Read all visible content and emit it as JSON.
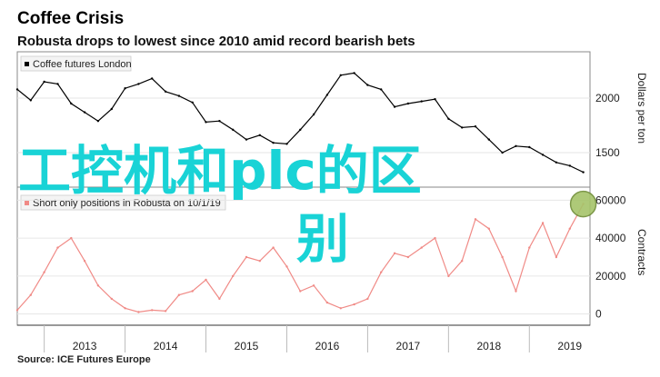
{
  "header": {
    "title": "Coffee Crisis",
    "subtitle": "Robusta drops to lowest since 2010 amid record bearish bets"
  },
  "source": "Source: ICE Futures Europe",
  "overlay_text": [
    "工控机和plc的区",
    "别"
  ],
  "colors": {
    "price_line": "#000000",
    "positions_line": "#f08a86",
    "highlight_circle": "#a6c46a",
    "overlay": "#19d3d6",
    "axis": "#333333"
  },
  "chart_data": [
    {
      "type": "line",
      "legend": "Coffee futures London",
      "ylabel": "Dollars per ton",
      "ylim": [
        1200,
        2400
      ],
      "yticks": [
        1500,
        2000
      ],
      "x": [
        "2012-09",
        "2012-11",
        "2013-01",
        "2013-03",
        "2013-05",
        "2013-07",
        "2013-09",
        "2013-11",
        "2014-01",
        "2014-03",
        "2014-05",
        "2014-07",
        "2014-09",
        "2014-11",
        "2015-01",
        "2015-03",
        "2015-05",
        "2015-07",
        "2015-09",
        "2015-11",
        "2016-01",
        "2016-03",
        "2016-05",
        "2016-07",
        "2016-09",
        "2016-11",
        "2017-01",
        "2017-03",
        "2017-05",
        "2017-07",
        "2017-09",
        "2017-11",
        "2018-01",
        "2018-03",
        "2018-05",
        "2018-07",
        "2018-09",
        "2018-11",
        "2019-01",
        "2019-03",
        "2019-05",
        "2019-07",
        "2019-09"
      ],
      "values": [
        2080,
        1980,
        2150,
        2130,
        1950,
        1870,
        1790,
        1900,
        2090,
        2130,
        2180,
        2060,
        2020,
        1960,
        1780,
        1790,
        1710,
        1620,
        1660,
        1590,
        1580,
        1710,
        1850,
        2030,
        2210,
        2230,
        2120,
        2080,
        1920,
        1950,
        1970,
        1990,
        1810,
        1730,
        1740,
        1620,
        1500,
        1560,
        1550,
        1480,
        1410,
        1380,
        1320
      ]
    },
    {
      "type": "line",
      "legend": "Short only positions in Robusta on 10/1/19",
      "ylabel": "Contracts",
      "ylim": [
        -5000,
        65000
      ],
      "yticks": [
        0,
        20000,
        40000,
        60000
      ],
      "x": [
        "2012-09",
        "2012-11",
        "2013-01",
        "2013-03",
        "2013-05",
        "2013-07",
        "2013-09",
        "2013-11",
        "2014-01",
        "2014-03",
        "2014-05",
        "2014-07",
        "2014-09",
        "2014-11",
        "2015-01",
        "2015-03",
        "2015-05",
        "2015-07",
        "2015-09",
        "2015-11",
        "2016-01",
        "2016-03",
        "2016-05",
        "2016-07",
        "2016-09",
        "2016-11",
        "2017-01",
        "2017-03",
        "2017-05",
        "2017-07",
        "2017-09",
        "2017-11",
        "2018-01",
        "2018-03",
        "2018-05",
        "2018-07",
        "2018-09",
        "2018-11",
        "2019-01",
        "2019-03",
        "2019-05",
        "2019-07",
        "2019-09"
      ],
      "values": [
        2000,
        10000,
        22000,
        35000,
        40000,
        28000,
        15000,
        8000,
        3000,
        1000,
        2000,
        1500,
        10000,
        12000,
        18000,
        8000,
        20000,
        30000,
        28000,
        35000,
        25000,
        12000,
        15000,
        6000,
        3000,
        5000,
        8000,
        22000,
        32000,
        30000,
        35000,
        40000,
        20000,
        28000,
        50000,
        45000,
        30000,
        12000,
        35000,
        48000,
        30000,
        45000,
        58000
      ]
    }
  ],
  "xaxis": {
    "ticks": [
      "2013",
      "2014",
      "2015",
      "2016",
      "2017",
      "2018",
      "2019"
    ]
  }
}
